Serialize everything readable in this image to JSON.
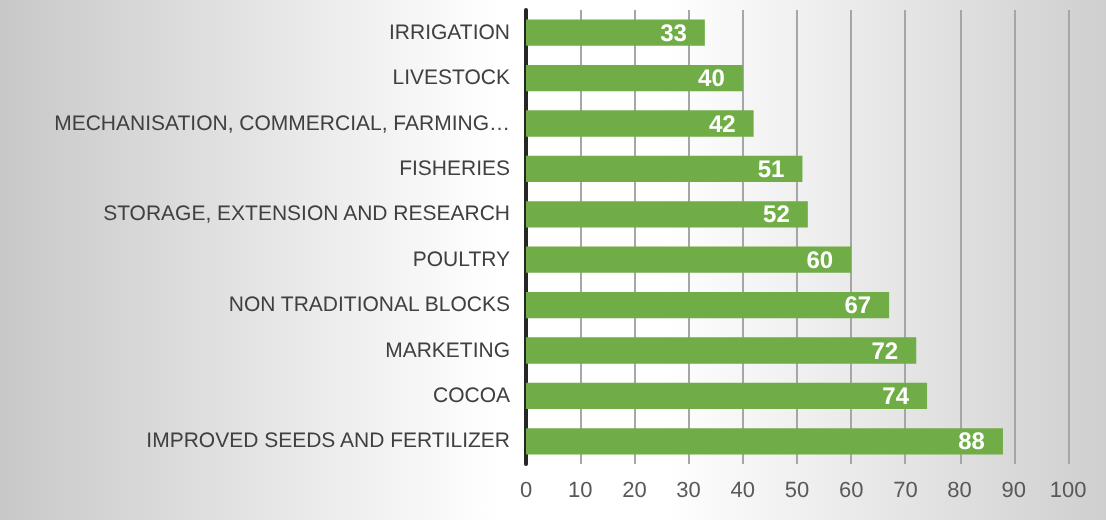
{
  "chart_data": {
    "type": "bar",
    "orientation": "horizontal",
    "categories": [
      "IRRIGATION",
      "LIVESTOCK",
      "MECHANISATION, COMMERCIAL, FARMING…",
      "FISHERIES",
      "STORAGE, EXTENSION AND RESEARCH",
      "POULTRY",
      "NON TRADITIONAL BLOCKS",
      "MARKETING",
      "COCOA",
      "IMPROVED SEEDS AND FERTILIZER"
    ],
    "values": [
      33,
      40,
      42,
      51,
      52,
      60,
      67,
      72,
      74,
      88
    ],
    "color": "#70ad47",
    "xlim": [
      0,
      100
    ],
    "xticks": [
      0,
      10,
      20,
      30,
      40,
      50,
      60,
      70,
      80,
      90,
      100
    ],
    "grid": "x",
    "data_labels": true
  }
}
